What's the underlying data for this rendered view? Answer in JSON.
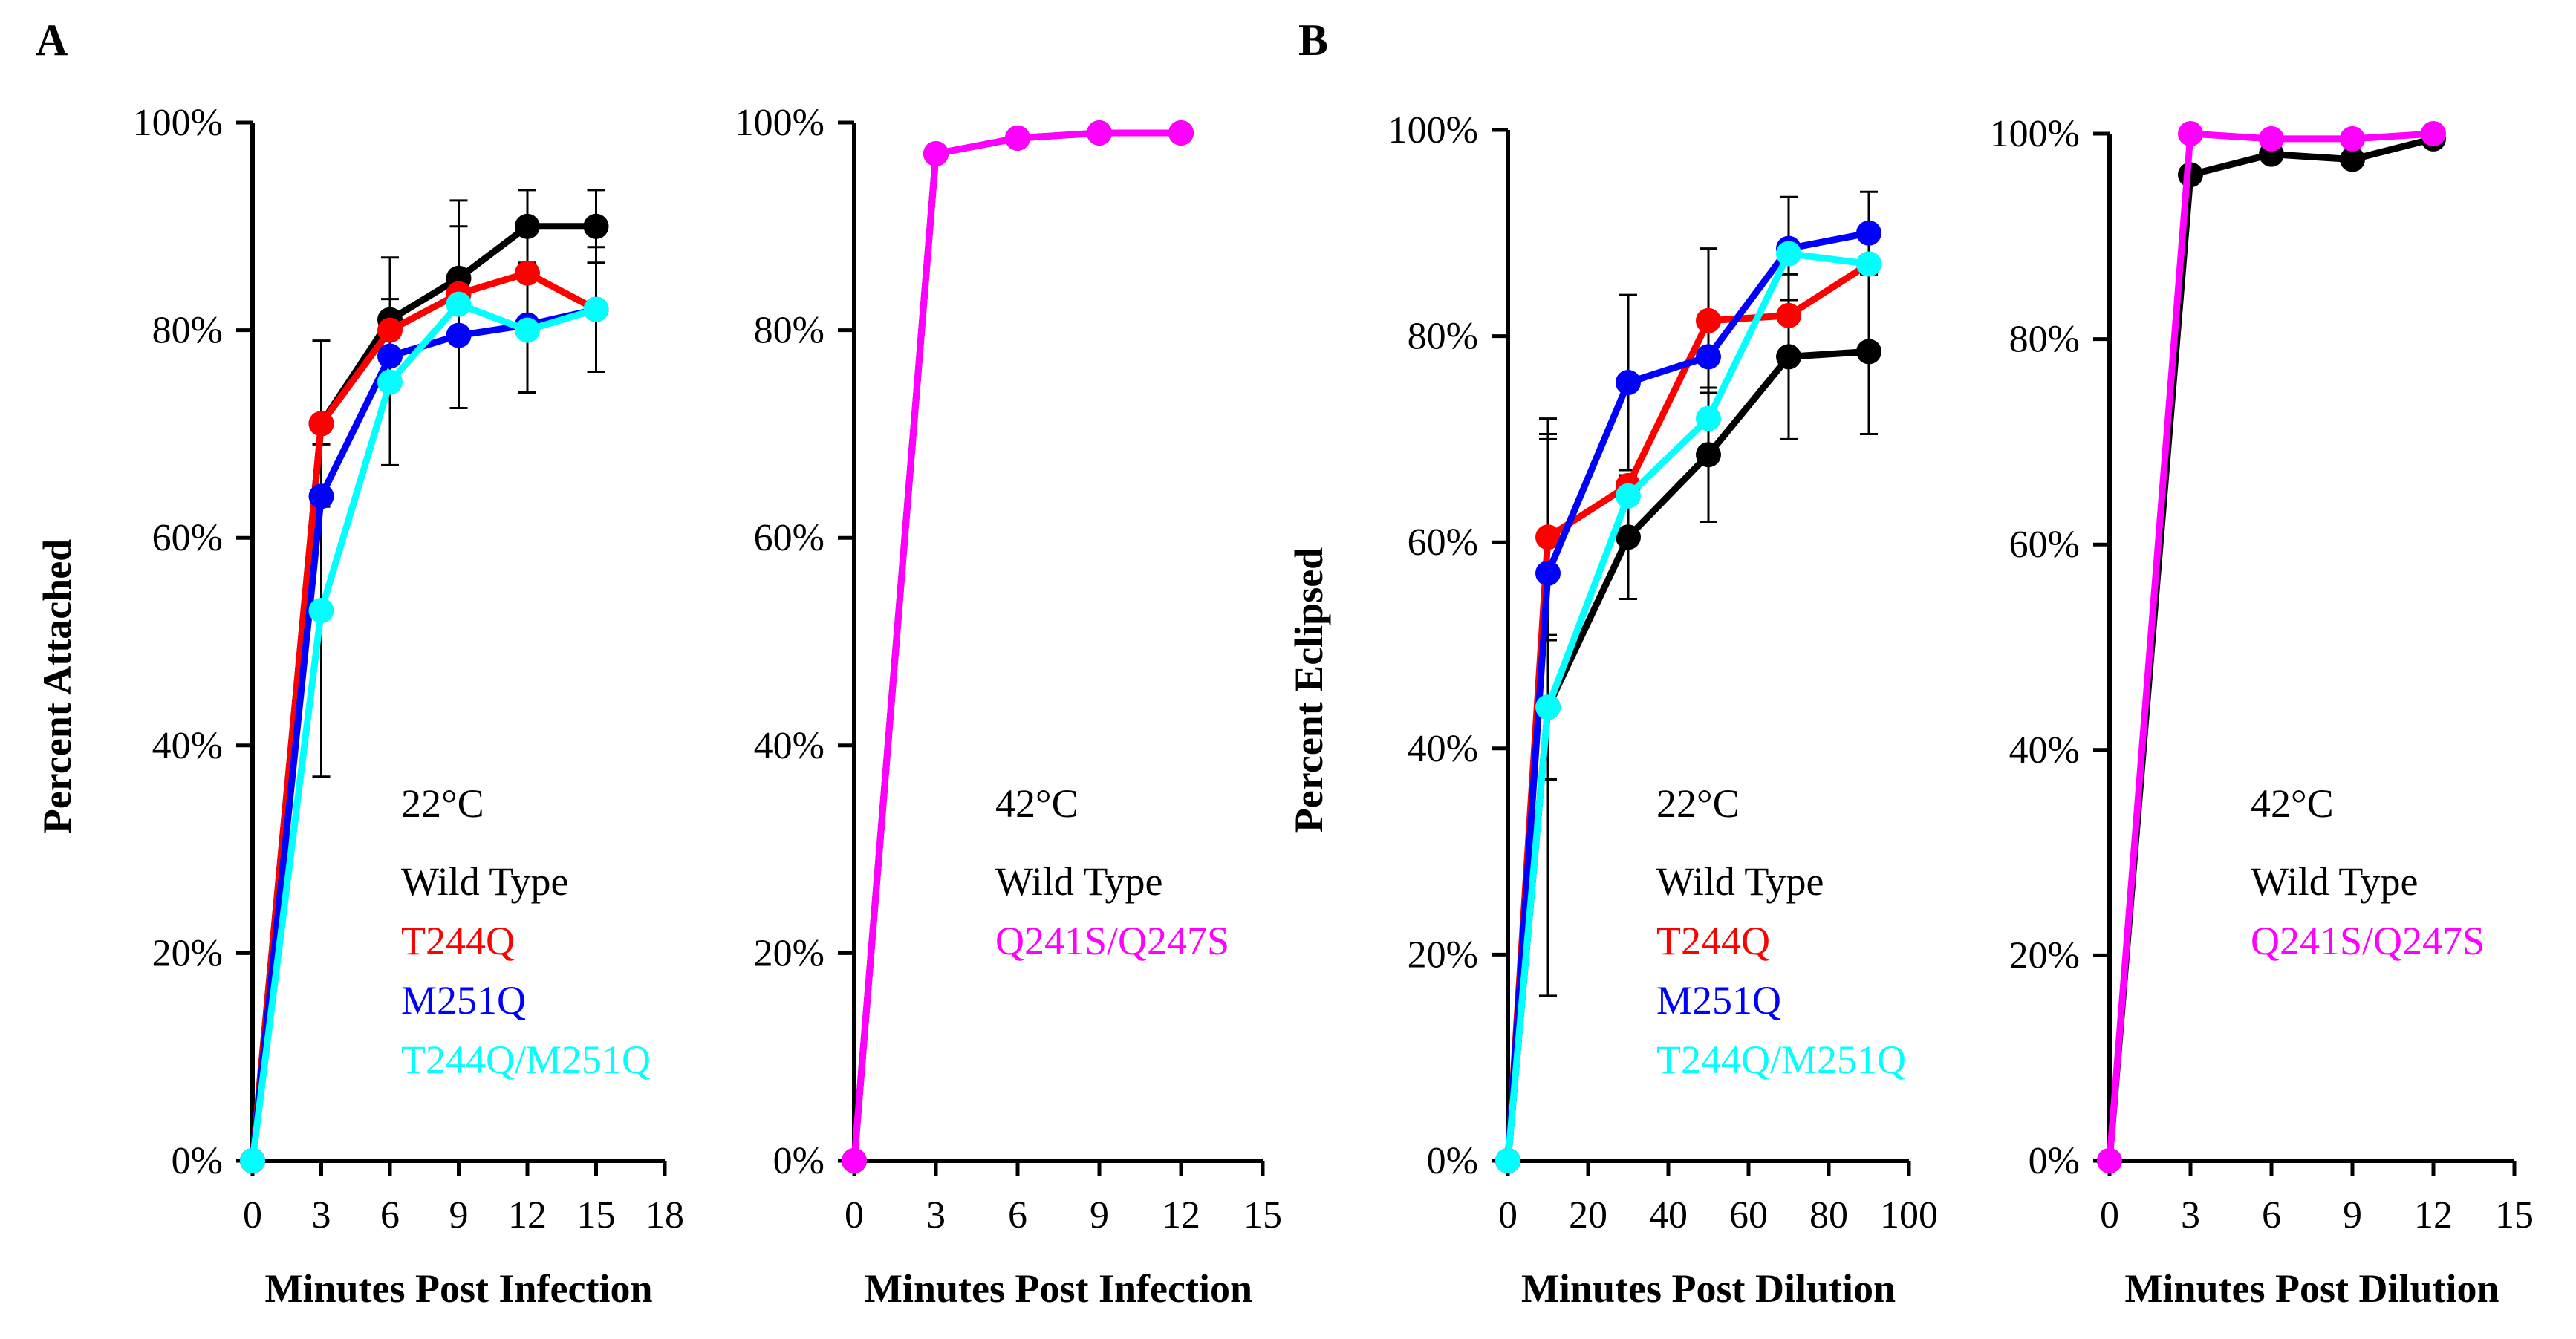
{
  "panels": [
    {
      "letter": "A"
    },
    {
      "letter": "B"
    }
  ],
  "chart_data": [
    {
      "type": "line",
      "panel": "A",
      "ylabel": "Percent Attached",
      "xlabel": "Minutes Post Infection",
      "xlim": [
        0,
        18
      ],
      "xticks": [
        "0",
        "3",
        "6",
        "9",
        "12",
        "15",
        "18"
      ],
      "ylim": [
        0,
        100
      ],
      "yticks": [
        "0%",
        "20%",
        "40%",
        "60%",
        "80%",
        "100%"
      ],
      "temperature": "22°C",
      "legend": [
        "Wild Type",
        "T244Q",
        "M251Q",
        "T244Q/M251Q"
      ],
      "series": [
        {
          "name": "Wild Type",
          "color": "#000000",
          "x": [
            0,
            3,
            6,
            9,
            12,
            15
          ],
          "y": [
            0,
            71,
            81,
            85,
            90,
            90
          ],
          "err": [
            0,
            8,
            6,
            5,
            3.5,
            3.5
          ]
        },
        {
          "name": "T244Q",
          "color": "#ff0000",
          "x": [
            0,
            3,
            6,
            9,
            12,
            15
          ],
          "y": [
            0,
            71,
            80,
            83.5,
            85.5,
            82
          ],
          "err": [
            0,
            0,
            0,
            0,
            0,
            0
          ]
        },
        {
          "name": "M251Q",
          "color": "#0000ff",
          "x": [
            0,
            3,
            6,
            9,
            12,
            15
          ],
          "y": [
            0,
            64,
            77.5,
            79.5,
            80.5,
            82
          ],
          "err": [
            0,
            0,
            0,
            0,
            0,
            0
          ]
        },
        {
          "name": "T244Q/M251Q",
          "color": "#00ffff",
          "x": [
            0,
            3,
            6,
            9,
            12,
            15
          ],
          "y": [
            0,
            53,
            75,
            82.5,
            80,
            82
          ],
          "err": [
            0,
            16,
            8,
            10,
            6,
            6
          ]
        }
      ]
    },
    {
      "type": "line",
      "panel": "A",
      "ylabel": "",
      "xlabel": "Minutes Post Infection",
      "xlim": [
        0,
        15
      ],
      "xticks": [
        "0",
        "3",
        "6",
        "9",
        "12",
        "15"
      ],
      "ylim": [
        0,
        100
      ],
      "yticks": [
        "0%",
        "20%",
        "40%",
        "60%",
        "80%",
        "100%"
      ],
      "temperature": "42°C",
      "legend": [
        "Wild Type",
        "Q241S/Q247S"
      ],
      "series": [
        {
          "name": "Wild Type",
          "color": "#000000",
          "x": [
            0,
            3,
            6,
            9,
            12
          ],
          "y": [
            0,
            97,
            98.5,
            99,
            99
          ],
          "err": [
            0,
            0,
            0,
            0,
            0
          ]
        },
        {
          "name": "Q241S/Q247S",
          "color": "#ff00ff",
          "x": [
            0,
            3,
            6,
            9,
            12
          ],
          "y": [
            0,
            97,
            98.5,
            99,
            99
          ],
          "err": [
            0,
            0,
            0,
            0,
            0
          ]
        }
      ]
    },
    {
      "type": "line",
      "panel": "B",
      "ylabel": "Percent Eclipsed",
      "xlabel": "Minutes Post Dilution",
      "xlim": [
        0,
        100
      ],
      "xticks": [
        "0",
        "20",
        "40",
        "60",
        "80",
        "100"
      ],
      "ylim": [
        0,
        100
      ],
      "yticks": [
        "0%",
        "20%",
        "40%",
        "60%",
        "80%",
        "100%"
      ],
      "temperature": "22°C",
      "legend": [
        "Wild Type",
        "T244Q",
        "M251Q",
        "T244Q/M251Q"
      ],
      "series": [
        {
          "name": "Wild Type",
          "color": "#000000",
          "x": [
            0,
            10,
            30,
            50,
            70,
            90
          ],
          "y": [
            0,
            44,
            60.5,
            68.5,
            78,
            78.5
          ],
          "err": [
            0,
            7,
            6,
            6.5,
            8,
            8
          ]
        },
        {
          "name": "T244Q",
          "color": "#ff0000",
          "x": [
            0,
            10,
            30,
            50,
            70,
            90
          ],
          "y": [
            0,
            60.5,
            65.5,
            81.5,
            82,
            87
          ],
          "err": [
            0,
            10,
            0,
            7,
            0,
            0
          ]
        },
        {
          "name": "M251Q",
          "color": "#0000ff",
          "x": [
            0,
            10,
            30,
            50,
            70,
            90
          ],
          "y": [
            0,
            57,
            75.5,
            78,
            88.5,
            90
          ],
          "err": [
            0,
            13,
            8.5,
            0,
            5,
            4
          ]
        },
        {
          "name": "T244Q/M251Q",
          "color": "#00ffff",
          "x": [
            0,
            10,
            30,
            50,
            70,
            90
          ],
          "y": [
            0,
            44,
            64.5,
            72,
            88,
            87
          ],
          "err": [
            0,
            28,
            0,
            10,
            0,
            0
          ]
        }
      ]
    },
    {
      "type": "line",
      "panel": "B",
      "ylabel": "",
      "xlabel": "Minutes Post Dilution",
      "xlim": [
        0,
        15
      ],
      "xticks": [
        "0",
        "3",
        "6",
        "9",
        "12",
        "15"
      ],
      "ylim": [
        0,
        100
      ],
      "yticks": [
        "0%",
        "20%",
        "40%",
        "60%",
        "80%",
        "100%"
      ],
      "temperature": "42°C",
      "legend": [
        "Wild Type",
        "Q241S/Q247S"
      ],
      "series": [
        {
          "name": "Wild Type",
          "color": "#000000",
          "x": [
            0,
            3,
            6,
            9,
            12
          ],
          "y": [
            0,
            96,
            98,
            97.5,
            99.5
          ],
          "err": [
            0,
            0,
            0,
            0,
            0
          ]
        },
        {
          "name": "Q241S/Q247S",
          "color": "#ff00ff",
          "x": [
            0,
            3,
            6,
            9,
            12
          ],
          "y": [
            0,
            100,
            99.5,
            99.5,
            100
          ],
          "err": [
            0,
            0,
            0,
            0,
            0
          ]
        }
      ]
    }
  ]
}
